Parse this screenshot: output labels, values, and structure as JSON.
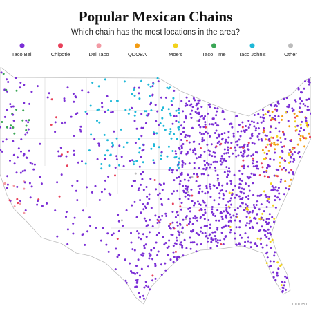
{
  "header": {
    "title": "Popular Mexican Chains",
    "subtitle": "Which chain has the most locations in the area?"
  },
  "legend": [
    {
      "label": "Taco Bell",
      "color": "#7b2fd6"
    },
    {
      "label": "Chipotle",
      "color": "#e8405a"
    },
    {
      "label": "Del Taco",
      "color": "#f29aa4"
    },
    {
      "label": "QDOBA",
      "color": "#f39c12"
    },
    {
      "label": "Moe's",
      "color": "#f2d21b"
    },
    {
      "label": "Taco Time",
      "color": "#3aa655"
    },
    {
      "label": "Taco John's",
      "color": "#1eb8d8"
    },
    {
      "label": "Other",
      "color": "#bbbbbb"
    }
  ],
  "credit": "moneo"
}
